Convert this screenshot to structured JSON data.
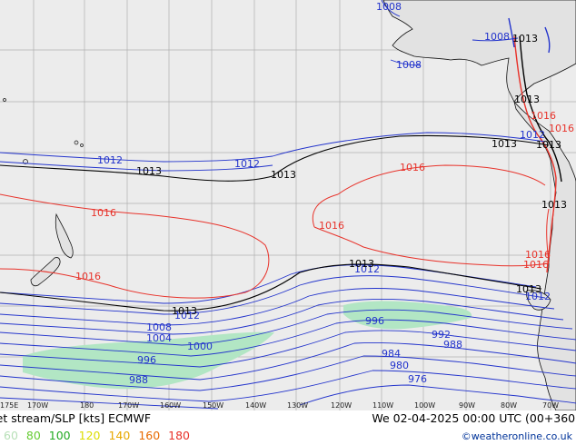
{
  "footer": {
    "title": "Jet stream/SLP [kts] ECMWF",
    "datetime": "We 02-04-2025 00:00 UTC (00+360)",
    "credit": "©weatheronline.co.uk",
    "legend": [
      {
        "label": "60",
        "color": "#b8e0b8"
      },
      {
        "label": "80",
        "color": "#66cc33"
      },
      {
        "label": "100",
        "color": "#22aa22"
      },
      {
        "label": "120",
        "color": "#dddd00"
      },
      {
        "label": "140",
        "color": "#e8a800"
      },
      {
        "label": "160",
        "color": "#e86a00"
      },
      {
        "label": "180",
        "color": "#e8322a"
      }
    ]
  },
  "longitudes": [
    "175E",
    "170W",
    "180",
    "170W",
    "160W",
    "150W",
    "140W",
    "130W",
    "120W",
    "110W",
    "100W",
    "90W",
    "80W",
    "70W"
  ],
  "isobars": {
    "blue": [
      "1008",
      "1008",
      "1008",
      "1012",
      "1012",
      "1012",
      "1012",
      "1012",
      "1012",
      "1008",
      "1004",
      "1000",
      "996",
      "988",
      "996",
      "992",
      "988",
      "984",
      "980",
      "976"
    ],
    "black": [
      "1013",
      "1013",
      "1013",
      "1013",
      "1013",
      "1013",
      "1013",
      "1013",
      "1013",
      "1013"
    ],
    "red": [
      "1016",
      "1016",
      "1016",
      "1016",
      "1016",
      "1016",
      "1016",
      "1016"
    ]
  },
  "colors": {
    "ocean": "#ececec",
    "land": "#e2e2e2",
    "grid": "#b0b0b0",
    "jet": "#b2e6c4",
    "blue": "#2233cc",
    "black": "#000000",
    "red": "#e8322a"
  }
}
